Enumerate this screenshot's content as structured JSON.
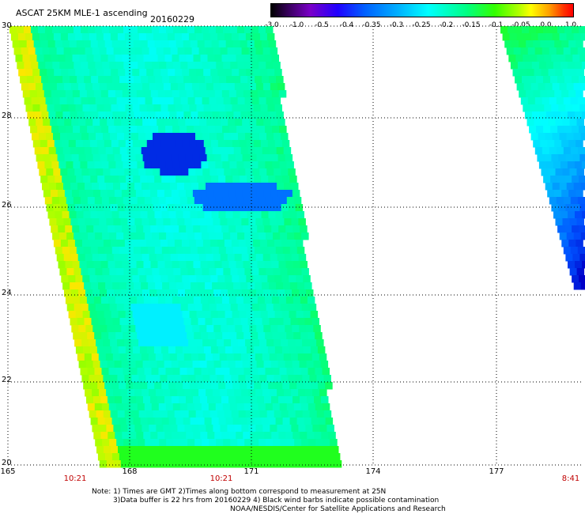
{
  "title": "ASCAT 25KM MLE-1 ascending",
  "date": "20160229",
  "colorbar": {
    "ticks": [
      "-3.0",
      "-1.0",
      "-0.5",
      "-0.4",
      "-0.35",
      "-0.3",
      "-0.25",
      "-0.2",
      "-0.15",
      "-0.1",
      "-0.05",
      "0.0",
      "1.0"
    ]
  },
  "y_labels": [
    "30",
    "28",
    "26",
    "24",
    "22",
    "20"
  ],
  "x_labels": [
    "165",
    "168",
    "171",
    "174",
    "177"
  ],
  "time_labels": [
    "10:21",
    "10:21",
    "8:41"
  ],
  "notes": [
    "Note: 1) Times are GMT 2)Times along bottom correspond to measurement at 25N",
    "3)Data buffer is 22 hrs from 20160229 4) Black wind barbs indicate possible contamination",
    "NOAA/NESDIS/Center for Satellite Applications and Research"
  ],
  "colors": {
    "background": "#ffffff",
    "grid": "#000000",
    "time_label": "#c00000"
  },
  "lat_range": [
    20,
    30
  ],
  "lon_range": [
    165,
    179.5
  ]
}
